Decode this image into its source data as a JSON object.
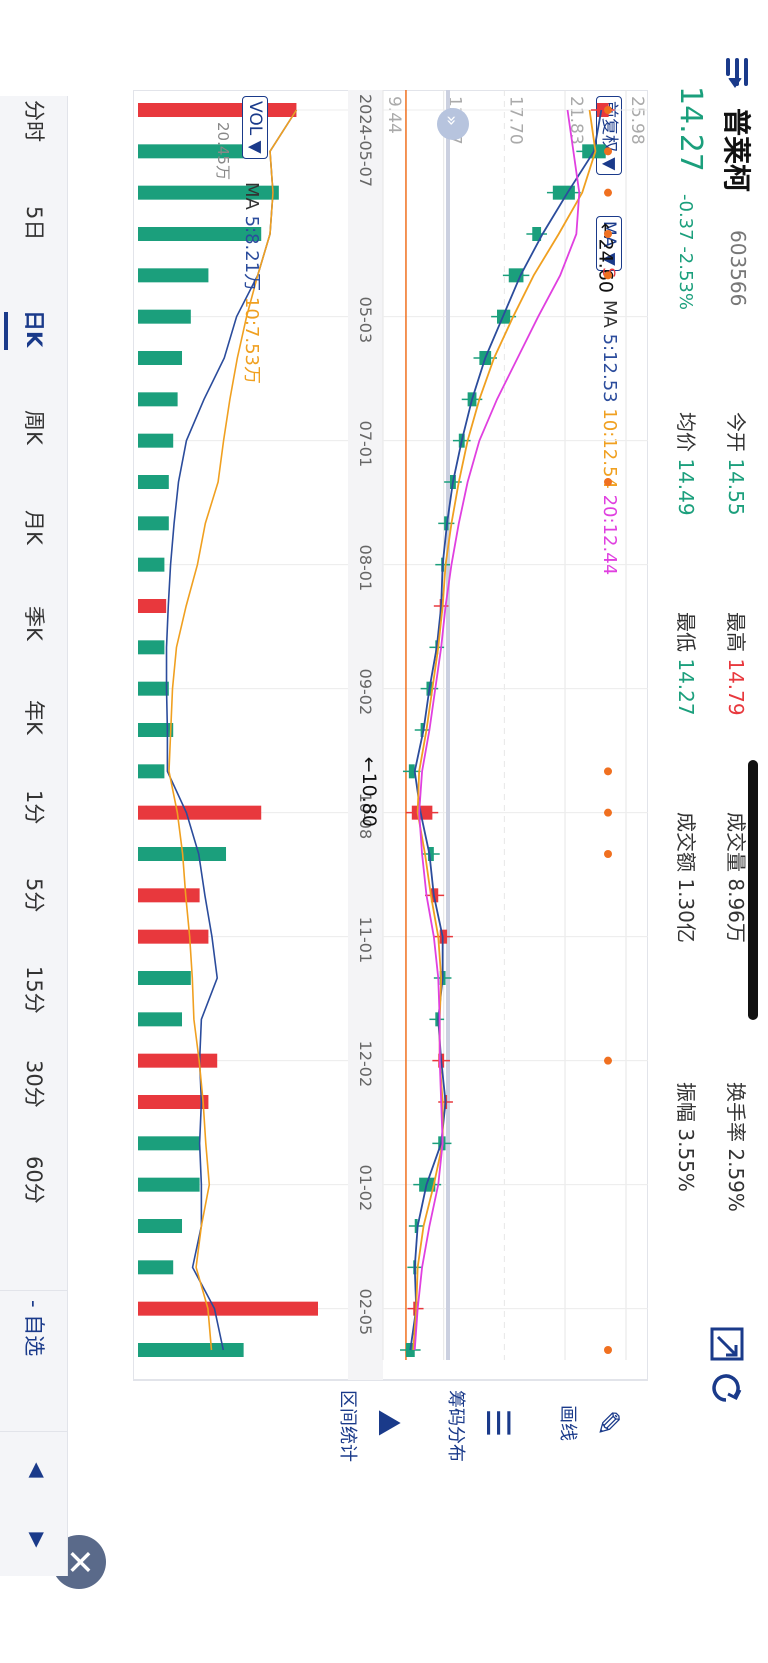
{
  "stock": {
    "name": "普莱柯",
    "code": "603566",
    "price": "14.27",
    "change": "-0.37",
    "change_pct": "-2.53%"
  },
  "stats": [
    {
      "label": "今开",
      "value": "14.55",
      "color": "green"
    },
    {
      "label": "最高",
      "value": "14.79",
      "color": "red"
    },
    {
      "label": "成交量",
      "value": "8.96万",
      "color": "black"
    },
    {
      "label": "换手率",
      "value": "2.59%",
      "color": "black"
    },
    {
      "label": "均价",
      "value": "14.49",
      "color": "green"
    },
    {
      "label": "最低",
      "value": "14.27",
      "color": "green"
    },
    {
      "label": "成交额",
      "value": "1.30亿",
      "color": "black"
    },
    {
      "label": "振幅",
      "value": "3.55%",
      "color": "black"
    }
  ],
  "toolbar": {
    "adjust": "前复权",
    "indicator": "MA",
    "draw": "画线",
    "chip": "筹码分布",
    "range": "区间统计",
    "close": "✕"
  },
  "ma_legend": {
    "label": "MA",
    "ma5": "5:12.53",
    "ma10": "10:12.54",
    "ma20": "20:12.44"
  },
  "vol_legend": {
    "button": "VOL",
    "label": "MA",
    "ma5": "5:8.21万",
    "ma10": "10:7.53万",
    "max": "20.45万"
  },
  "y_ticks": [
    "25.98",
    "21.83",
    "17.70",
    "13.57",
    "9.44"
  ],
  "markers": {
    "high_label": "←24.60",
    "low_label": "←10.80",
    "sell": "S"
  },
  "x_ticks": [
    "2024-05-07",
    "05-03",
    "07-01",
    "08-01",
    "09-02",
    "10-08",
    "11-01",
    "12-02",
    "01-02",
    "02-05"
  ],
  "tabs": [
    "分时",
    "5日",
    "日K",
    "周K",
    "月K",
    "季K",
    "年K",
    "1分",
    "5分",
    "15分",
    "30分",
    "60分"
  ],
  "watch": "- 自选",
  "colors": {
    "up": "#e8383d",
    "down": "#1b9f7c",
    "ma5": "#2b4c9c",
    "ma10": "#f0a020",
    "ma20": "#e040e0",
    "accent": "#1a3a8a",
    "price_line": "#f07020"
  },
  "chart_data": {
    "type": "candlestick",
    "title": "普莱柯 603566 日K",
    "ylim": [
      9.44,
      25.98
    ],
    "x": [
      "2024-05-07",
      "05-10",
      "05-16",
      "05-22",
      "05-28",
      "06-03",
      "06-11",
      "06-20",
      "07-01",
      "07-10",
      "07-19",
      "08-01",
      "08-12",
      "08-21",
      "09-02",
      "09-12",
      "09-24",
      "10-08",
      "10-16",
      "10-24",
      "11-01",
      "11-12",
      "11-21",
      "12-02",
      "12-11",
      "12-20",
      "01-02",
      "01-13",
      "01-22",
      "02-05",
      "02-14"
    ],
    "close": [
      24.8,
      23.0,
      21.0,
      19.6,
      18.0,
      17.2,
      16.0,
      15.2,
      14.6,
      14.0,
      13.6,
      13.4,
      13.5,
      13.0,
      12.4,
      12.0,
      11.2,
      12.8,
      12.5,
      13.2,
      13.8,
      13.3,
      13.0,
      13.6,
      13.8,
      13.2,
      11.9,
      11.6,
      11.5,
      11.8,
      11.0
    ],
    "open": [
      24.0,
      24.6,
      22.5,
      20.2,
      19.0,
      18.1,
      16.8,
      15.8,
      15.0,
      14.4,
      13.9,
      13.6,
      13.3,
      13.2,
      12.8,
      12.2,
      11.6,
      11.4,
      12.9,
      12.7,
      13.3,
      13.7,
      13.2,
      13.2,
      13.6,
      13.7,
      13.0,
      11.8,
      11.7,
      11.5,
      11.6
    ],
    "series": [
      {
        "name": "MA5",
        "values": [
          24.3,
          23.8,
          22.0,
          20.3,
          18.8,
          17.6,
          16.4,
          15.5,
          14.8,
          14.2,
          13.8,
          13.5,
          13.4,
          13.1,
          12.6,
          12.2,
          11.6,
          12.0,
          12.6,
          12.9,
          13.5,
          13.5,
          13.2,
          13.4,
          13.7,
          13.4,
          12.4,
          11.8,
          11.6,
          11.7,
          11.3
        ]
      },
      {
        "name": "MA10",
        "values": [
          23.5,
          23.9,
          23.0,
          21.4,
          19.7,
          18.3,
          17.0,
          16.0,
          15.2,
          14.6,
          14.1,
          13.7,
          13.5,
          13.2,
          12.8,
          12.4,
          11.9,
          11.8,
          12.3,
          12.7,
          13.2,
          13.4,
          13.3,
          13.3,
          13.5,
          13.5,
          12.9,
          12.2,
          11.8,
          11.7,
          11.5
        ]
      },
      {
        "name": "MA20",
        "values": [
          22.0,
          22.4,
          22.8,
          22.6,
          21.5,
          20.0,
          18.6,
          17.2,
          16.0,
          15.2,
          14.6,
          14.1,
          13.7,
          13.4,
          13.0,
          12.6,
          12.1,
          11.9,
          12.1,
          12.4,
          12.9,
          13.2,
          13.3,
          13.3,
          13.4,
          13.5,
          13.2,
          12.6,
          12.1,
          11.8,
          11.6
        ]
      }
    ],
    "volume": [
      18.0,
      12.0,
      16.0,
      14.0,
      8.0,
      6.0,
      5.0,
      4.5,
      4.0,
      3.5,
      3.5,
      3.0,
      3.2,
      3.0,
      3.5,
      4.0,
      3.0,
      14.0,
      10.0,
      7.0,
      8.0,
      6.0,
      5.0,
      9.0,
      8.0,
      7.0,
      7.0,
      5.0,
      4.0,
      20.45,
      12.0
    ]
  }
}
